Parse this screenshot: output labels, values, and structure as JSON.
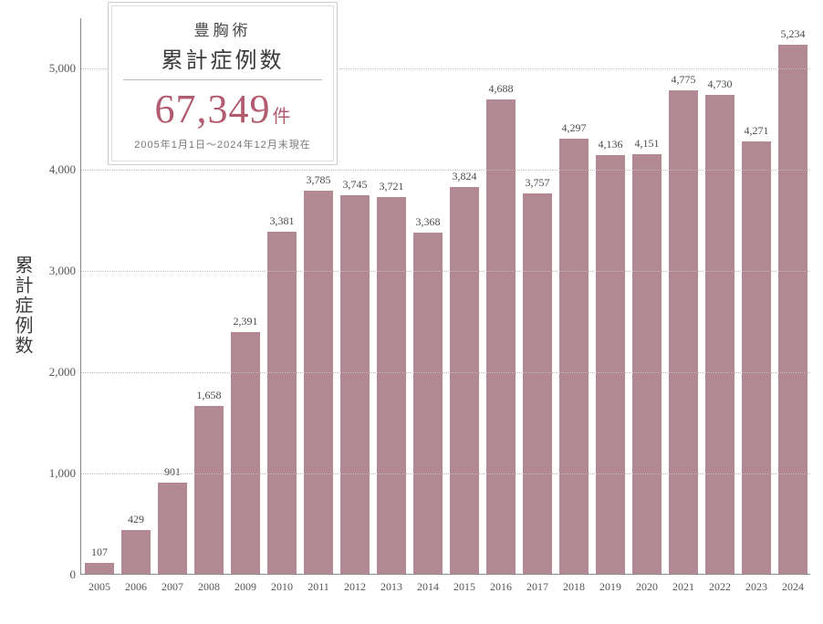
{
  "chart": {
    "type": "bar",
    "y_title": "累計症例数",
    "categories": [
      "2005",
      "2006",
      "2007",
      "2008",
      "2009",
      "2010",
      "2011",
      "2012",
      "2013",
      "2014",
      "2015",
      "2016",
      "2017",
      "2018",
      "2019",
      "2020",
      "2021",
      "2022",
      "2023",
      "2024"
    ],
    "values": [
      107,
      429,
      901,
      1658,
      2391,
      3381,
      3785,
      3745,
      3721,
      3368,
      3824,
      4688,
      3757,
      4297,
      4136,
      4151,
      4775,
      4730,
      4271,
      5234
    ],
    "value_labels": [
      "107",
      "429",
      "901",
      "1,658",
      "2,391",
      "3,381",
      "3,785",
      "3,745",
      "3,721",
      "3,368",
      "3,824",
      "4,688",
      "3,757",
      "4,297",
      "4,136",
      "4,151",
      "4,775",
      "4,730",
      "4,271",
      "5,234"
    ],
    "bar_color": "#b28993",
    "ylim_max": 5500,
    "y_ticks": [
      0,
      1000,
      2000,
      3000,
      4000,
      5000
    ],
    "y_tick_labels": [
      "0",
      "1,000",
      "2,000",
      "3,000",
      "4,000",
      "5,000"
    ],
    "background_color": "#ffffff",
    "grid_color": "#bdbdbd",
    "axis_color": "#888888",
    "bar_width_ratio": 0.78,
    "label_fontsize": 12,
    "y_title_fontsize": 20
  },
  "summary": {
    "line1": "豊胸術",
    "line2": "累計症例数",
    "total": "67,349",
    "unit": "件",
    "daterange": "2005年1月1日～2024年12月末現在",
    "accent_color": "#b25b6e",
    "border_color": "#cccccc"
  }
}
